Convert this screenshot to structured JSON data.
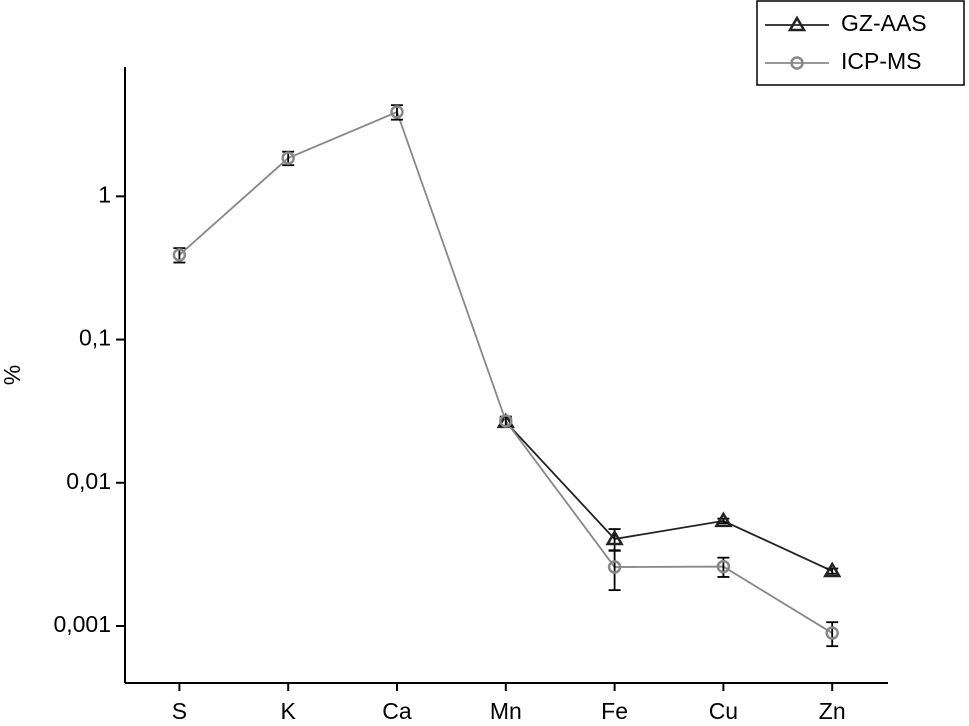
{
  "chart_data": {
    "type": "line",
    "y_label": "%",
    "log_y": true,
    "legend": "upper right",
    "categories": [
      "S",
      "K",
      "Ca",
      "Mn",
      "Fe",
      "Cu",
      "Zn"
    ],
    "series": [
      {
        "name": "GZ-AAS",
        "color": "#222222",
        "marker": "triangle",
        "values": [
          null,
          null,
          null,
          0.0266,
          0.00405,
          0.00542,
          0.00242
        ],
        "errors": [
          null,
          null,
          null,
          0.002,
          0.0007,
          0.0002,
          0.0001
        ]
      },
      {
        "name": "ICP-MS",
        "color": "#888888",
        "marker": "circle",
        "values": [
          0.39,
          1.85,
          3.88,
          0.027,
          0.00258,
          0.0026,
          0.000893
        ],
        "errors": [
          0.045,
          0.2,
          0.45,
          0.002,
          0.0008,
          0.0004,
          0.00017
        ]
      }
    ],
    "ylim": [
      0.0004,
      8
    ],
    "yticks": [
      {
        "value": 0.001,
        "label": "0,001"
      },
      {
        "value": 0.01,
        "label": "0,01"
      },
      {
        "value": 0.1,
        "label": "0,1"
      },
      1
    ]
  }
}
